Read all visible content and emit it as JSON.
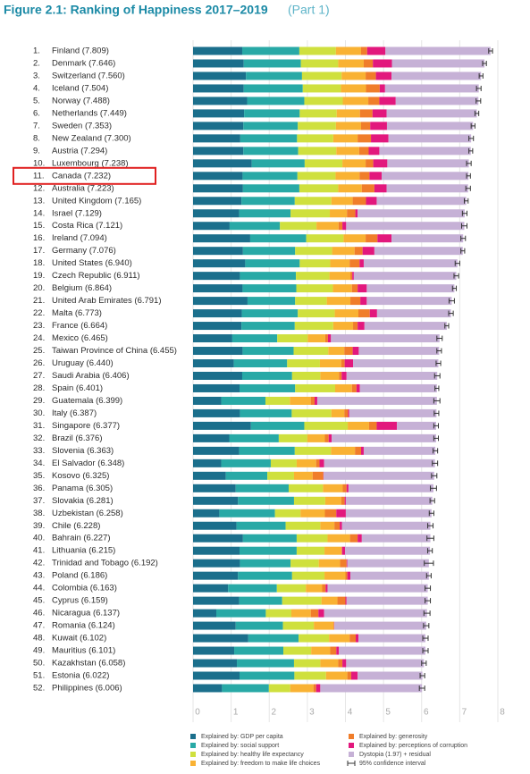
{
  "chart_data": {
    "type": "stacked-barh",
    "title": "Figure 2.1: Ranking of Happiness 2017–2019",
    "subtitle": "(Part 1)",
    "ranks": [
      "1.",
      "2.",
      "3.",
      "4.",
      "5.",
      "6.",
      "7.",
      "8.",
      "9.",
      "10.",
      "11.",
      "12.",
      "13.",
      "14.",
      "15.",
      "16.",
      "17.",
      "18.",
      "19.",
      "20.",
      "21.",
      "22.",
      "23.",
      "24.",
      "25.",
      "26.",
      "27.",
      "28.",
      "29.",
      "30.",
      "31.",
      "32.",
      "33.",
      "34.",
      "35.",
      "36.",
      "37.",
      "38.",
      "39.",
      "40.",
      "41.",
      "42.",
      "43.",
      "44.",
      "45.",
      "46.",
      "47.",
      "48.",
      "49.",
      "50.",
      "51.",
      "52."
    ],
    "categories": [
      "Finland (7.809)",
      "Denmark (7.646)",
      "Switzerland (7.560)",
      "Iceland (7.504)",
      "Norway (7.488)",
      "Netherlands (7.449)",
      "Sweden (7.353)",
      "New Zealand (7.300)",
      "Austria (7.294)",
      "Luxembourg (7.238)",
      "Canada (7.232)",
      "Australia (7.223)",
      "United Kingdom (7.165)",
      "Israel (7.129)",
      "Costa Rica (7.121)",
      "Ireland (7.094)",
      "Germany (7.076)",
      "United States (6.940)",
      "Czech Republic (6.911)",
      "Belgium (6.864)",
      "United Arab Emirates (6.791)",
      "Malta (6.773)",
      "France (6.664)",
      "Mexico (6.465)",
      "Taiwan Province of China (6.455)",
      "Uruguay (6.440)",
      "Saudi Arabia (6.406)",
      "Spain (6.401)",
      "Guatemala (6.399)",
      "Italy (6.387)",
      "Singapore (6.377)",
      "Brazil (6.376)",
      "Slovenia (6.363)",
      "El Salvador (6.348)",
      "Kosovo (6.325)",
      "Panama (6.305)",
      "Slovakia (6.281)",
      "Uzbekistan (6.258)",
      "Chile (6.228)",
      "Bahrain (6.227)",
      "Lithuania (6.215)",
      "Trinidad and Tobago (6.192)",
      "Poland (6.186)",
      "Colombia (6.163)",
      "Cyprus (6.159)",
      "Nicaragua (6.137)",
      "Romania (6.124)",
      "Kuwait (6.102)",
      "Mauritius (6.101)",
      "Kazakhstan (6.058)",
      "Estonia (6.022)",
      "Philippines (6.006)"
    ],
    "series": [
      {
        "name": "Explained by: GDP per capita",
        "color": "#1b6f8c",
        "values": [
          1.29,
          1.33,
          1.39,
          1.33,
          1.42,
          1.34,
          1.32,
          1.24,
          1.32,
          1.54,
          1.3,
          1.31,
          1.27,
          1.21,
          0.96,
          1.5,
          1.31,
          1.37,
          1.23,
          1.3,
          1.43,
          1.28,
          1.27,
          1.03,
          1.3,
          1.07,
          1.29,
          1.22,
          0.74,
          1.23,
          1.52,
          0.95,
          1.21,
          0.74,
          0.86,
          1.12,
          1.18,
          0.69,
          1.14,
          1.31,
          1.22,
          1.23,
          1.18,
          0.92,
          1.21,
          0.61,
          1.12,
          1.45,
          1.08,
          1.15,
          1.22,
          0.76
        ]
      },
      {
        "name": "Explained by: social support",
        "color": "#28a9a6",
        "values": [
          1.5,
          1.5,
          1.47,
          1.55,
          1.5,
          1.46,
          1.43,
          1.49,
          1.44,
          1.39,
          1.44,
          1.48,
          1.4,
          1.35,
          1.32,
          1.47,
          1.37,
          1.43,
          1.47,
          1.41,
          1.25,
          1.47,
          1.4,
          1.18,
          1.34,
          1.4,
          1.31,
          1.46,
          1.16,
          1.36,
          1.4,
          1.3,
          1.46,
          1.3,
          1.09,
          1.39,
          1.47,
          1.46,
          1.29,
          1.41,
          1.5,
          1.33,
          1.42,
          1.28,
          1.13,
          1.3,
          1.24,
          1.32,
          1.29,
          1.5,
          1.44,
          1.23
        ]
      },
      {
        "name": "Explained by: healthy life expectancy",
        "color": "#cfe03e",
        "values": [
          0.96,
          0.98,
          1.04,
          1.0,
          1.01,
          0.97,
          1.0,
          0.95,
          1.0,
          0.99,
          1.0,
          1.02,
          0.96,
          1.03,
          0.96,
          0.98,
          0.97,
          0.8,
          0.88,
          0.96,
          0.83,
          0.97,
          1.01,
          0.8,
          0.91,
          0.86,
          0.74,
          1.05,
          0.64,
          1.04,
          1.14,
          0.75,
          0.95,
          0.68,
          0.7,
          0.9,
          0.82,
          0.67,
          0.91,
          0.81,
          0.73,
          0.74,
          0.85,
          0.76,
          1.03,
          0.67,
          0.81,
          0.8,
          0.73,
          0.69,
          0.83,
          0.56
        ]
      },
      {
        "name": "Explained by: freedom to make life choices",
        "color": "#f9b233",
        "values": [
          0.66,
          0.67,
          0.63,
          0.66,
          0.67,
          0.61,
          0.66,
          0.64,
          0.6,
          0.61,
          0.63,
          0.62,
          0.56,
          0.45,
          0.58,
          0.58,
          0.59,
          0.51,
          0.55,
          0.5,
          0.62,
          0.62,
          0.52,
          0.46,
          0.42,
          0.56,
          0.49,
          0.44,
          0.55,
          0.34,
          0.56,
          0.46,
          0.63,
          0.51,
          0.49,
          0.52,
          0.42,
          0.64,
          0.37,
          0.59,
          0.45,
          0.56,
          0.55,
          0.43,
          0.42,
          0.51,
          0.53,
          0.54,
          0.5,
          0.47,
          0.56,
          0.61
        ]
      },
      {
        "name": "Explained by: generosity",
        "color": "#f07d2a",
        "values": [
          0.16,
          0.24,
          0.27,
          0.36,
          0.29,
          0.33,
          0.24,
          0.35,
          0.25,
          0.2,
          0.26,
          0.33,
          0.35,
          0.22,
          0.1,
          0.31,
          0.21,
          0.26,
          0.05,
          0.15,
          0.26,
          0.3,
          0.12,
          0.07,
          0.22,
          0.09,
          0.07,
          0.12,
          0.1,
          0.1,
          0.2,
          0.1,
          0.16,
          0.09,
          0.28,
          0.1,
          0.09,
          0.3,
          0.14,
          0.2,
          0.01,
          0.17,
          0.05,
          0.09,
          0.21,
          0.2,
          0.0,
          0.16,
          0.16,
          0.11,
          0.1,
          0.07
        ]
      },
      {
        "name": "Explained by: perceptions of corruption",
        "color": "#e2187d",
        "values": [
          0.48,
          0.5,
          0.41,
          0.14,
          0.43,
          0.37,
          0.44,
          0.46,
          0.28,
          0.37,
          0.32,
          0.32,
          0.28,
          0.06,
          0.1,
          0.37,
          0.31,
          0.11,
          0.04,
          0.24,
          0.17,
          0.19,
          0.18,
          0.08,
          0.16,
          0.22,
          0.13,
          0.09,
          0.07,
          0.03,
          0.53,
          0.08,
          0.07,
          0.12,
          0.01,
          0.05,
          0.03,
          0.25,
          0.06,
          0.11,
          0.08,
          0.02,
          0.08,
          0.05,
          0.03,
          0.15,
          0.01,
          0.07,
          0.07,
          0.1,
          0.17,
          0.11
        ]
      },
      {
        "name": "Dystopia (1.97) + residual",
        "color": "#c6b1d6",
        "values": [
          2.76,
          2.43,
          2.35,
          2.46,
          2.17,
          2.37,
          2.26,
          2.17,
          2.4,
          2.14,
          2.28,
          2.14,
          2.35,
          2.81,
          3.1,
          1.88,
          2.32,
          2.46,
          2.69,
          2.3,
          2.23,
          1.94,
          2.16,
          2.85,
          2.11,
          2.24,
          2.38,
          2.02,
          3.14,
          2.29,
          1.03,
          2.74,
          1.88,
          2.91,
          2.9,
          2.23,
          2.27,
          2.25,
          2.32,
          1.8,
          2.23,
          2.14,
          2.06,
          2.63,
          2.13,
          2.7,
          2.41,
          1.76,
          2.27,
          2.04,
          1.7,
          2.67
        ]
      }
    ],
    "ci_label": "95% confidence interval",
    "ci": [
      0.05,
      0.05,
      0.05,
      0.06,
      0.06,
      0.05,
      0.05,
      0.06,
      0.05,
      0.06,
      0.05,
      0.06,
      0.05,
      0.06,
      0.07,
      0.06,
      0.05,
      0.06,
      0.06,
      0.05,
      0.07,
      0.06,
      0.05,
      0.07,
      0.06,
      0.06,
      0.07,
      0.05,
      0.08,
      0.06,
      0.06,
      0.06,
      0.06,
      0.07,
      0.07,
      0.08,
      0.06,
      0.06,
      0.07,
      0.09,
      0.06,
      0.12,
      0.06,
      0.07,
      0.07,
      0.08,
      0.07,
      0.07,
      0.07,
      0.06,
      0.06,
      0.07
    ],
    "xlim": [
      0,
      8
    ],
    "xticks": [
      0,
      1,
      2,
      3,
      4,
      5,
      6,
      7,
      8
    ],
    "grid": true
  }
}
